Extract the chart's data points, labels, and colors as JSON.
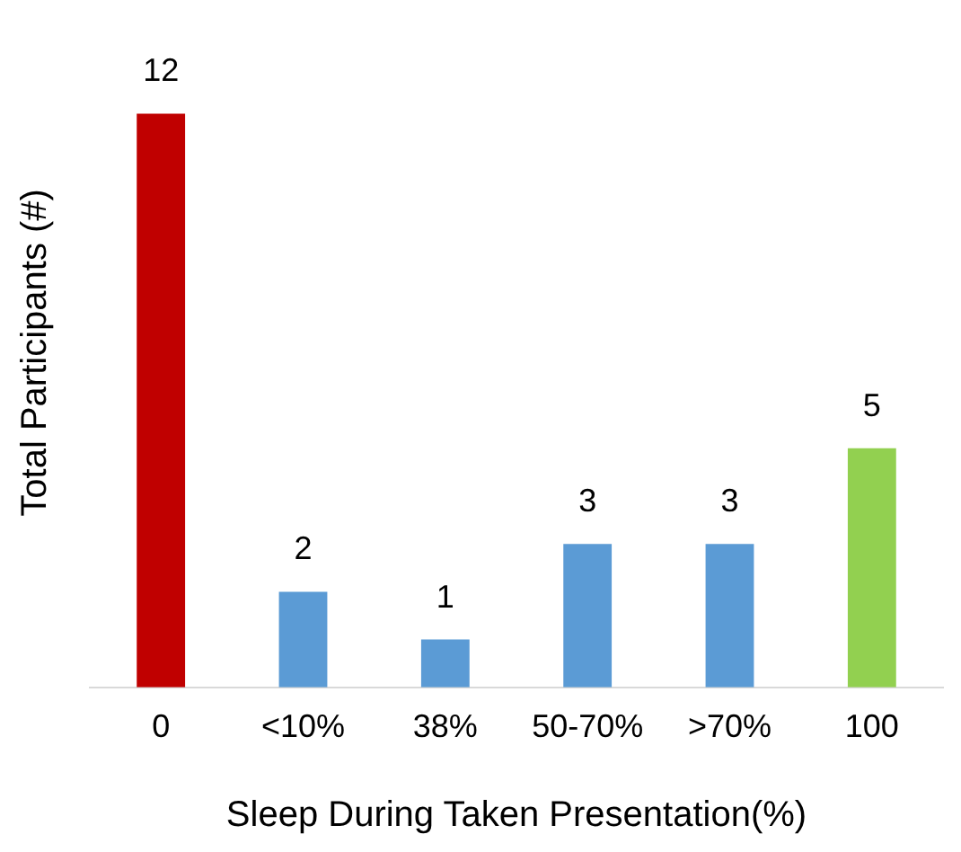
{
  "chart_data": {
    "type": "bar",
    "xlabel": "Sleep During Taken Presentation(%)",
    "ylabel": "Total Participants (#)",
    "categories": [
      "0",
      "<10%",
      "38%",
      "50-70%",
      ">70%",
      "100"
    ],
    "values": [
      12,
      2,
      1,
      3,
      3,
      5
    ],
    "colors": [
      "#c00000",
      "#5b9bd5",
      "#5b9bd5",
      "#5b9bd5",
      "#5b9bd5",
      "#92d050"
    ],
    "data_labels": true,
    "grid": false,
    "legend": false,
    "tick_labels": "x"
  }
}
